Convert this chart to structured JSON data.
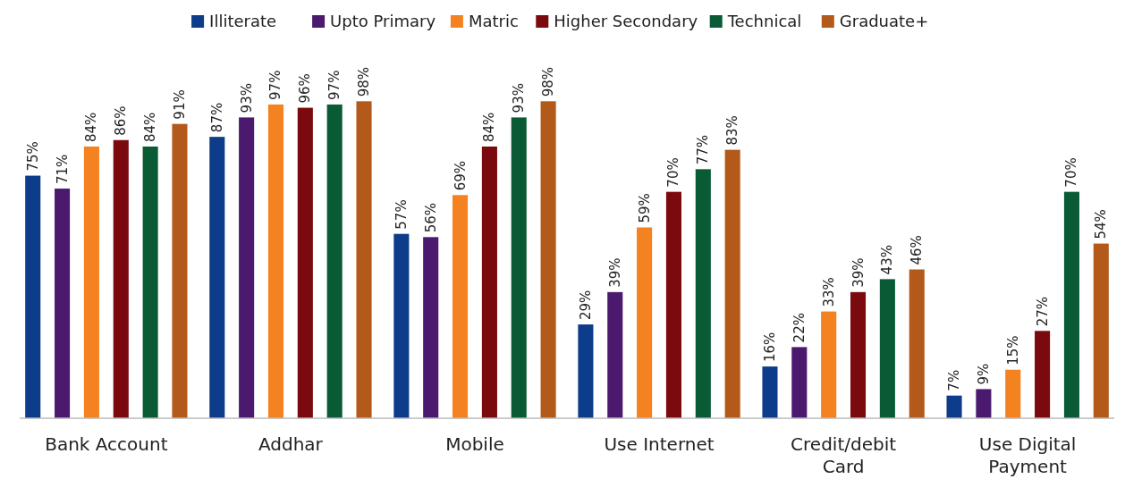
{
  "chart_data": {
    "type": "bar",
    "categories": [
      "Bank Account",
      "Addhar",
      "Mobile",
      "Use Internet",
      "Credit/debit Card",
      "Use Digital Payment"
    ],
    "series": [
      {
        "name": "Illiterate",
        "color": "#0d3d8a",
        "values": [
          75,
          87,
          57,
          29,
          16,
          7
        ],
        "value_labels": [
          "75%",
          "87%",
          "57%",
          "29%",
          "16%",
          "7%"
        ]
      },
      {
        "name": "Upto Primary",
        "color": "#4b1a6e",
        "values": [
          71,
          93,
          56,
          39,
          22,
          9
        ],
        "value_labels": [
          "71%",
          "93%",
          "56%",
          "39%",
          "22%",
          "9%"
        ]
      },
      {
        "name": "Matric",
        "color": "#f58220",
        "values": [
          84,
          97,
          69,
          59,
          33,
          15
        ],
        "value_labels": [
          "84%",
          "97%",
          "69%",
          "59%",
          "33%",
          "15%"
        ]
      },
      {
        "name": "Higher Secondary",
        "color": "#7a0a0e",
        "values": [
          86,
          96,
          84,
          70,
          39,
          27
        ],
        "value_labels": [
          "86%",
          "96%",
          "84%",
          "70%",
          "39%",
          "27%"
        ]
      },
      {
        "name": "Technical",
        "color": "#0b5a36",
        "values": [
          84,
          97,
          93,
          77,
          43,
          70
        ],
        "value_labels": [
          "84%",
          "97%",
          "93%",
          "77%",
          "43%",
          "70%"
        ]
      },
      {
        "name": "Graduate+",
        "color": "#b35a1a",
        "values": [
          91,
          98,
          98,
          83,
          46,
          54
        ],
        "value_labels": [
          "91%",
          "98%",
          "98%",
          "83%",
          "46%",
          "54%"
        ]
      }
    ],
    "legend": "top",
    "grid": false
  }
}
